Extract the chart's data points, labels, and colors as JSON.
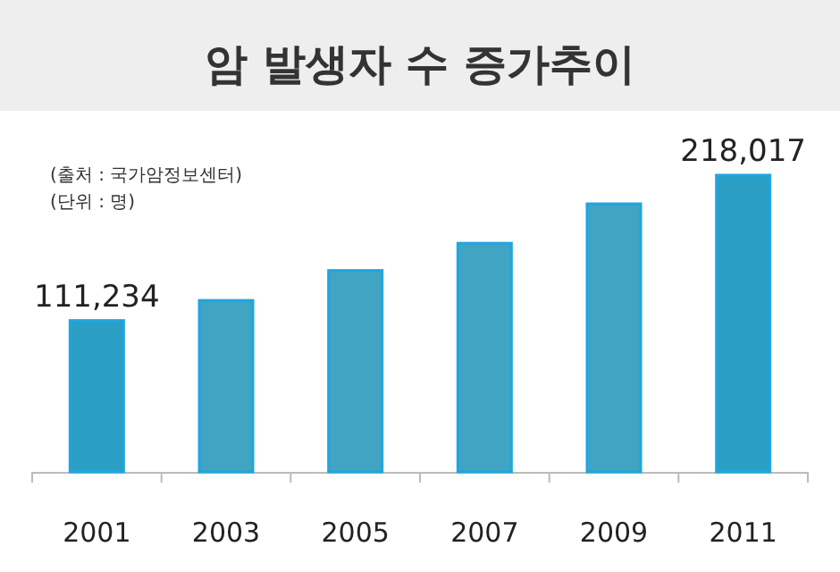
{
  "chart_data": {
    "type": "bar",
    "title": "암 발생자 수 증가추이",
    "annotations": [
      "(출처 : 국가암정보센터)",
      "(단위 : 명)"
    ],
    "categories": [
      "2001",
      "2003",
      "2005",
      "2007",
      "2009",
      "2011"
    ],
    "values": [
      111234,
      126000,
      148000,
      168000,
      197000,
      218017
    ],
    "colors": [
      "#2a9ec4",
      "#40a4c2",
      "#40a4c2",
      "#40a4c2",
      "#40a4c2",
      "#2a9ec4"
    ],
    "value_labels": [
      "111,234",
      null,
      null,
      null,
      null,
      "218,017"
    ]
  }
}
